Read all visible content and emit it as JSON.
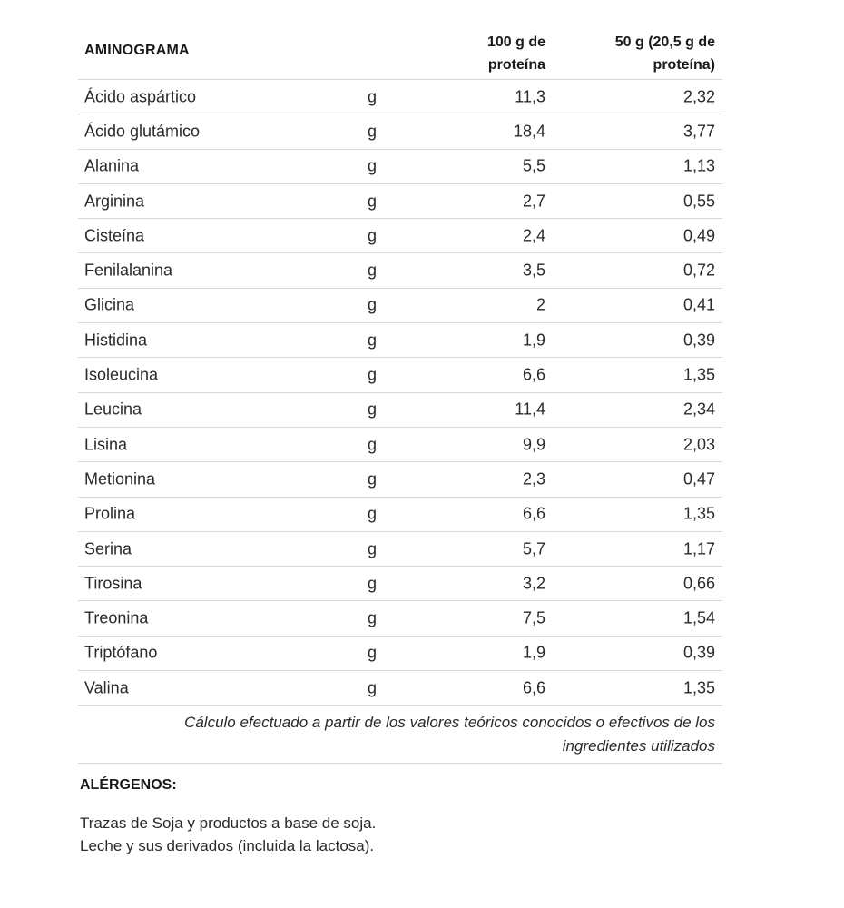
{
  "aminograma": {
    "title": "AMINOGRAMA",
    "col_100_line1": "100 g de",
    "col_100_line2": "proteína",
    "col_50_line1": "50 g  (20,5 g de",
    "col_50_line2": "proteína)",
    "rows": [
      {
        "name": "Ácido aspártico",
        "unit": "g",
        "per100": "11,3",
        "per50": "2,32"
      },
      {
        "name": "Ácido glutámico",
        "unit": "g",
        "per100": "18,4",
        "per50": "3,77"
      },
      {
        "name": "Alanina",
        "unit": "g",
        "per100": "5,5",
        "per50": "1,13"
      },
      {
        "name": "Arginina",
        "unit": "g",
        "per100": "2,7",
        "per50": "0,55"
      },
      {
        "name": "Cisteína",
        "unit": "g",
        "per100": "2,4",
        "per50": "0,49"
      },
      {
        "name": "Fenilalanina",
        "unit": "g",
        "per100": "3,5",
        "per50": "0,72"
      },
      {
        "name": "Glicina",
        "unit": "g",
        "per100": "2",
        "per50": "0,41"
      },
      {
        "name": "Histidina",
        "unit": "g",
        "per100": "1,9",
        "per50": "0,39"
      },
      {
        "name": "Isoleucina",
        "unit": "g",
        "per100": "6,6",
        "per50": "1,35"
      },
      {
        "name": "Leucina",
        "unit": "g",
        "per100": "11,4",
        "per50": "2,34"
      },
      {
        "name": "Lisina",
        "unit": "g",
        "per100": "9,9",
        "per50": "2,03"
      },
      {
        "name": "Metionina",
        "unit": "g",
        "per100": "2,3",
        "per50": "0,47"
      },
      {
        "name": "Prolina",
        "unit": "g",
        "per100": "6,6",
        "per50": "1,35"
      },
      {
        "name": "Serina",
        "unit": "g",
        "per100": "5,7",
        "per50": "1,17"
      },
      {
        "name": "Tirosina",
        "unit": "g",
        "per100": "3,2",
        "per50": "0,66"
      },
      {
        "name": "Treonina",
        "unit": "g",
        "per100": "7,5",
        "per50": "1,54"
      },
      {
        "name": "Triptófano",
        "unit": "g",
        "per100": "1,9",
        "per50": "0,39"
      },
      {
        "name": "Valina",
        "unit": "g",
        "per100": "6,6",
        "per50": "1,35"
      }
    ],
    "footnote_line1": "Cálculo efectuado a partir de los valores teóricos conocidos o efectivos de los",
    "footnote_line2": "ingredientes utilizados"
  },
  "allergens": {
    "title": "ALÉRGENOS:",
    "lines": [
      "Trazas de Soja y productos a base de soja.",
      "Leche y sus derivados (incluida la lactosa)."
    ]
  }
}
